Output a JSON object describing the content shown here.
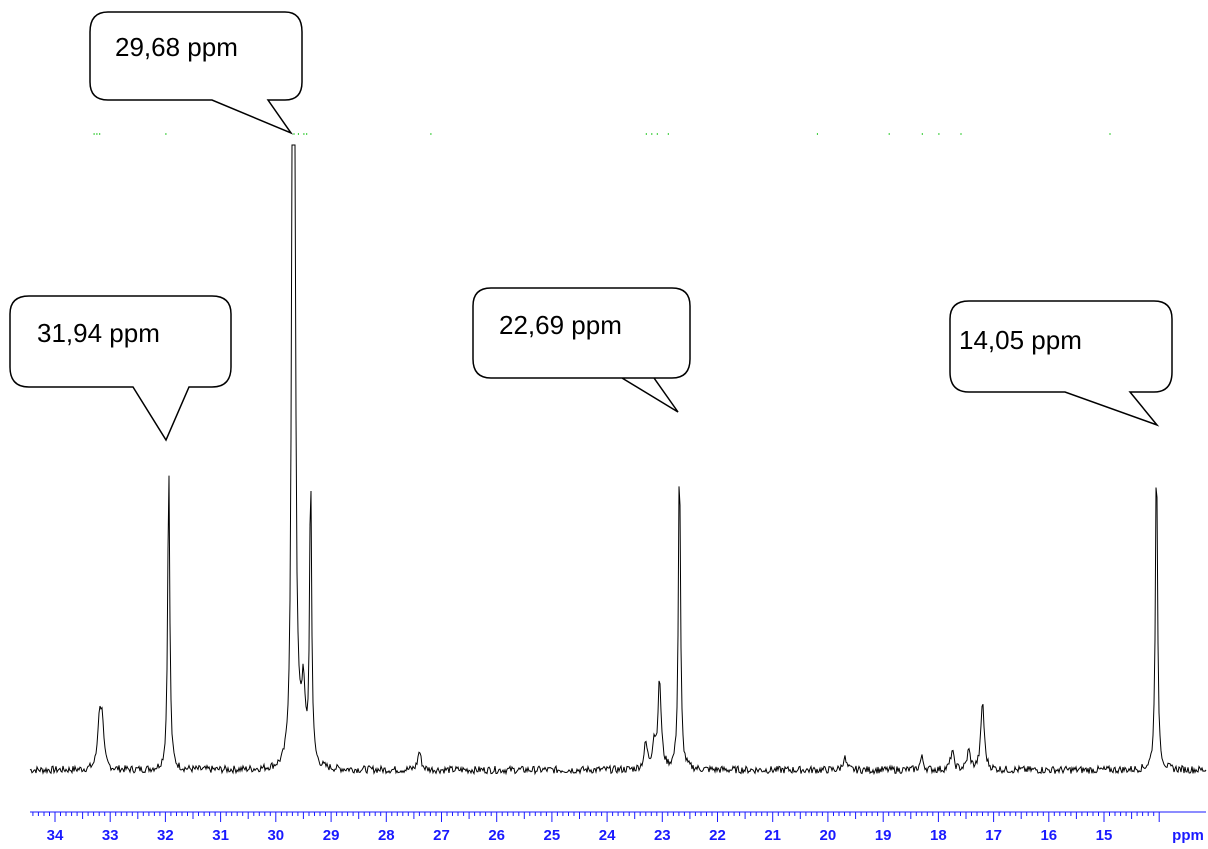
{
  "chart_data": {
    "type": "line",
    "title": "",
    "xlabel": "ppm",
    "ylabel": "",
    "x_reversed": true,
    "xlim": [
      34.4,
      14.0
    ],
    "ylim": [
      0,
      1.0
    ],
    "grid": false,
    "colors": {
      "spectrum": "#000000",
      "axis": "#1a1aff",
      "peak_marks": "#33cc33"
    },
    "tick_labels": [
      "34",
      "33",
      "32",
      "31",
      "30",
      "29",
      "28",
      "27",
      "26",
      "25",
      "24",
      "23",
      "22",
      "21",
      "20",
      "19",
      "18",
      "17",
      "16",
      "15"
    ],
    "peaks": [
      {
        "ppm": 33.2,
        "height": 0.07
      },
      {
        "ppm": 33.15,
        "height": 0.08
      },
      {
        "ppm": 31.94,
        "height": 0.49
      },
      {
        "ppm": 29.7,
        "height": 0.95
      },
      {
        "ppm": 29.66,
        "height": 0.95
      },
      {
        "ppm": 29.5,
        "height": 0.11
      },
      {
        "ppm": 29.37,
        "height": 0.47
      },
      {
        "ppm": 27.4,
        "height": 0.03
      },
      {
        "ppm": 23.3,
        "height": 0.04
      },
      {
        "ppm": 23.15,
        "height": 0.04
      },
      {
        "ppm": 23.05,
        "height": 0.14
      },
      {
        "ppm": 22.69,
        "height": 0.51
      },
      {
        "ppm": 19.7,
        "height": 0.02
      },
      {
        "ppm": 18.3,
        "height": 0.02
      },
      {
        "ppm": 17.75,
        "height": 0.03
      },
      {
        "ppm": 17.45,
        "height": 0.03
      },
      {
        "ppm": 17.2,
        "height": 0.11
      },
      {
        "ppm": 14.05,
        "height": 0.52
      }
    ],
    "peak_marks_ppm": [
      33.3,
      33.25,
      33.2,
      32.0,
      29.68,
      29.6,
      29.5,
      29.45,
      27.2,
      23.3,
      23.2,
      23.1,
      22.9,
      20.2,
      18.9,
      18.3,
      18.0,
      17.6,
      14.9
    ],
    "annotations": [
      {
        "text": "29,68 ppm",
        "ppm": 29.68
      },
      {
        "text": "31,94 ppm",
        "ppm": 31.94
      },
      {
        "text": "22,69 ppm",
        "ppm": 22.69
      },
      {
        "text": "14,05 ppm",
        "ppm": 14.05
      }
    ]
  }
}
